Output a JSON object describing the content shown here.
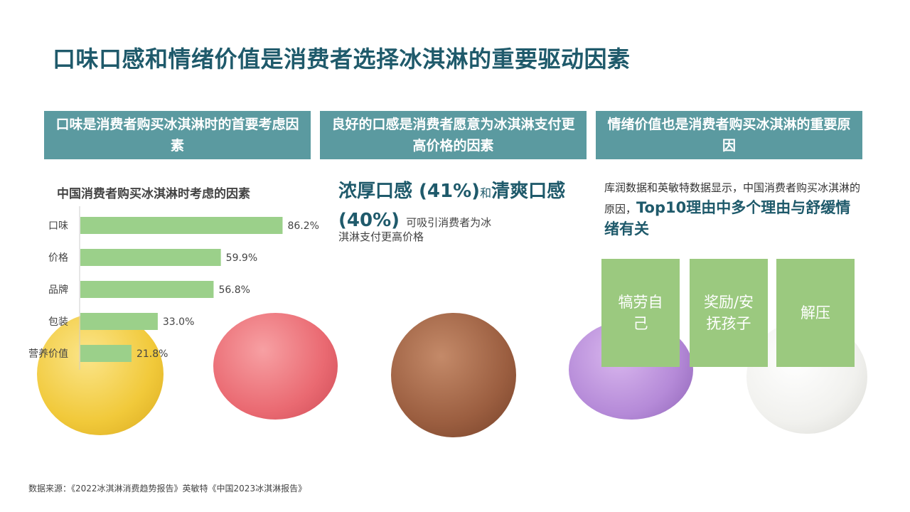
{
  "title": "口味口感和情绪价值是消费者选择冰淇淋的重要驱动因素",
  "columns": [
    {
      "header": "口味是消费者购买冰淇淋时的首要考虑因素"
    },
    {
      "header": "良好的口感是消费者愿意为冰淇淋支付更高价格的因素"
    },
    {
      "header": "情绪价值也是消费者购买冰淇淋的重要原因"
    }
  ],
  "middle": {
    "big_text_1": "浓厚口感 (41%)",
    "connector": "和",
    "big_text_2": "清爽口感 (40%)",
    "desc_inline": "可吸引消费者为冰",
    "desc_rest": "淇淋支付更高价格"
  },
  "right": {
    "paragraph": "库润数据和英敏特数据显示，中国消费者购买冰淇淋的原因，",
    "highlight": "Top10理由中多个理由与舒缓情绪有关",
    "boxes": [
      "犒劳自己",
      "奖励/安抚孩子",
      "解压"
    ]
  },
  "chart_data": {
    "type": "bar",
    "orientation": "horizontal",
    "title": "中国消费者购买冰淇淋时考虑的因素",
    "categories": [
      "口味",
      "价格",
      "品牌",
      "包装",
      "营养价值"
    ],
    "values": [
      86.2,
      59.9,
      56.8,
      33.0,
      21.8
    ],
    "value_labels": [
      "86.2%",
      "59.9%",
      "56.8%",
      "33.0%",
      "21.8%"
    ],
    "bar_color": "#9bd08a",
    "xlim": [
      0,
      100
    ]
  },
  "colors": {
    "teal_header": "#5b9aa0",
    "title_text": "#1f5a6b",
    "box_green": "#9bc97f"
  },
  "source": "数据来源：《2022冰淇淋消费趋势报告》英敏特《中国2023冰淇淋报告》"
}
